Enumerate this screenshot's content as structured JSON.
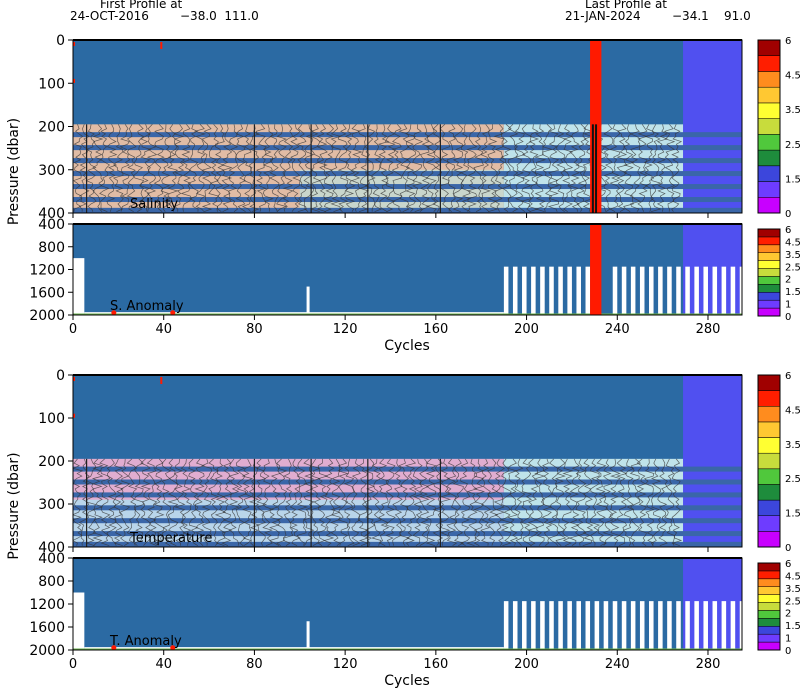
{
  "header": {
    "first_label": "First Profile at",
    "first_date": "24-OCT-2016",
    "first_coords": "−38.0  111.0",
    "last_label": "Last Profile at",
    "last_date": "21-JAN-2024",
    "last_coords": "−34.1    91.0"
  },
  "colors": {
    "background_blue": "#2b6aa3",
    "late_blue": "#5050f0",
    "flag_red": "#ff1a00",
    "salinity_band": "#f5c5a5",
    "temperature_band": "#f5b5d5",
    "contour_line": "#333333",
    "stripe": "#3a66a8"
  },
  "chart_data": [
    {
      "type": "heatmap",
      "panel": "salinity",
      "label": "Salinity",
      "ylabel": "Pressure (dbar)",
      "xlim": [
        0,
        295
      ],
      "ylim": [
        400,
        0
      ],
      "yticks": [
        0,
        100,
        200,
        300,
        400
      ],
      "xticks": [
        0,
        40,
        80,
        120,
        160,
        200,
        240,
        280
      ],
      "colorbar_ticks": [
        "6",
        "4.5",
        "3.5",
        "2.5",
        "1.5",
        "0"
      ],
      "red_cycles": [
        228,
        233
      ]
    },
    {
      "type": "heatmap",
      "panel": "salinity_anomaly",
      "label": "S. Anomaly",
      "xlabel": "Cycles",
      "xlim": [
        0,
        295
      ],
      "ylim": [
        2000,
        400
      ],
      "yticks": [
        400,
        800,
        1200,
        1600,
        2000
      ],
      "xticks": [
        0,
        40,
        80,
        120,
        160,
        200,
        240,
        280
      ],
      "colorbar_ticks": [
        "6",
        "4.5",
        "3.5",
        "2.5",
        "2",
        "1.5",
        "1",
        "0"
      ],
      "red_cycles": [
        228,
        233
      ]
    },
    {
      "type": "heatmap",
      "panel": "temperature",
      "label": "Temperature",
      "ylabel": "Pressure (dbar)",
      "xlim": [
        0,
        295
      ],
      "ylim": [
        400,
        0
      ],
      "yticks": [
        0,
        100,
        200,
        300,
        400
      ],
      "xticks": [
        0,
        40,
        80,
        120,
        160,
        200,
        240,
        280
      ],
      "colorbar_ticks": [
        "6",
        "4.5",
        "3.5",
        "2.5",
        "1.5",
        "0"
      ]
    },
    {
      "type": "heatmap",
      "panel": "temperature_anomaly",
      "label": "T. Anomaly",
      "xlabel": "Cycles",
      "xlim": [
        0,
        295
      ],
      "ylim": [
        2000,
        400
      ],
      "yticks": [
        400,
        800,
        1200,
        1600,
        2000
      ],
      "xticks": [
        0,
        40,
        80,
        120,
        160,
        200,
        240,
        280
      ],
      "colorbar_ticks": [
        "6",
        "4.5",
        "3.5",
        "2.5",
        "2",
        "1.5",
        "1",
        "0"
      ]
    }
  ],
  "colorbar_colors": [
    "#c800ff",
    "#6e3cff",
    "#3c46dc",
    "#1e8c3c",
    "#50c83c",
    "#c8dc3c",
    "#ffff32",
    "#ffc832",
    "#ff8c1e",
    "#ff1e00",
    "#a00000"
  ]
}
